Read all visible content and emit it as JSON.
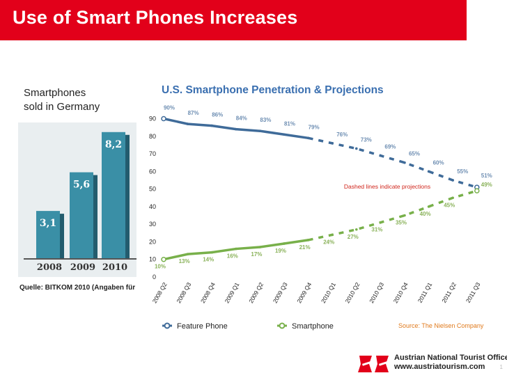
{
  "slide": {
    "title": "Use of Smart Phones Increases",
    "page_number": "1"
  },
  "colors": {
    "brand_red": "#e2001a",
    "bar_teal": "#3a8fa6",
    "feature_blue": "#3f6b99",
    "smartphone_green": "#78b04a",
    "title_blue": "#3a6fb0",
    "note_red": "#d0261c"
  },
  "footer": {
    "org": "Austrian National Tourist Office",
    "url": "www.austriatourism.com",
    "logo_icon": "austria-flag-logo-icon"
  },
  "chart_data": [
    {
      "type": "bar",
      "title": "Smartphones sold in Germany",
      "title_lines": [
        "Smartphones",
        "sold in Germany"
      ],
      "categories": [
        "2008",
        "2009",
        "2010"
      ],
      "values": [
        3.1,
        5.6,
        8.2
      ],
      "value_labels": [
        "3,1",
        "5,6",
        "8,2"
      ],
      "source": "Quelle: BITKOM 2010 (Angaben für"
    },
    {
      "type": "line",
      "title": "U.S. Smartphone Penetration & Projections",
      "categories": [
        "2008 Q2",
        "2008 Q3",
        "2008 Q4",
        "2009 Q1",
        "2009 Q2",
        "2009 Q3",
        "2009 Q4",
        "2010 Q1",
        "2010 Q2",
        "2010 Q3",
        "2010 Q4",
        "2011 Q1",
        "2011 Q2",
        "2011 Q3"
      ],
      "ylim": [
        0,
        90
      ],
      "yticks": [
        0,
        10,
        20,
        30,
        40,
        50,
        60,
        70,
        80,
        90
      ],
      "projection_start_index": 6,
      "note": "Dashed lines indicate projections",
      "source": "Source: The Nielsen Company",
      "series": [
        {
          "name": "Feature Phone",
          "values": [
            90,
            87,
            86,
            84,
            83,
            81,
            79,
            76,
            73,
            69,
            65,
            60,
            55,
            51
          ],
          "labels": [
            "90%",
            "87%",
            "86%",
            "84%",
            "83%",
            "81%",
            "79%",
            "76%",
            "73%",
            "69%",
            "65%",
            "60%",
            "55%",
            "51%"
          ]
        },
        {
          "name": "Smartphone",
          "values": [
            10,
            13,
            14,
            16,
            17,
            19,
            21,
            24,
            27,
            31,
            35,
            40,
            45,
            49
          ],
          "labels": [
            "10%",
            "13%",
            "14%",
            "16%",
            "17%",
            "19%",
            "21%",
            "24%",
            "27%",
            "31%",
            "35%",
            "40%",
            "45%",
            "49%"
          ]
        }
      ]
    }
  ]
}
